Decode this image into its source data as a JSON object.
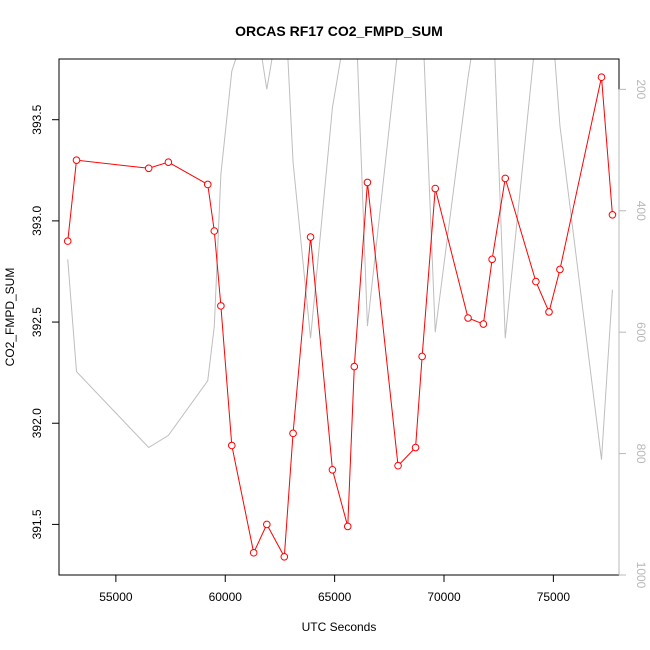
{
  "chart_data": {
    "type": "line",
    "title": "ORCAS RF17 CO2_FMPD_SUM",
    "xlabel": "UTC Seconds",
    "ylabel": "CO2_FMPD_SUM",
    "xlim": [
      52400,
      78000
    ],
    "ylim": [
      391.25,
      393.8
    ],
    "x_ticks": [
      55000,
      60000,
      65000,
      70000,
      75000
    ],
    "x_tick_labels": [
      "55000",
      "60000",
      "65000",
      "70000",
      "75000"
    ],
    "y_ticks": [
      391.5,
      392.0,
      392.5,
      393.0,
      393.5
    ],
    "y_tick_labels": [
      "391.5",
      "392.0",
      "392.5",
      "393.0",
      "393.5"
    ],
    "y2lim": [
      1000,
      150
    ],
    "y2_ticks": [
      200,
      400,
      600,
      800,
      1000
    ],
    "y2_tick_labels": [
      "200",
      "400",
      "600",
      "800",
      "1000"
    ],
    "grid": false,
    "series": [
      {
        "color": "#ff0000",
        "axis": "left",
        "markers": "open-circle",
        "x": [
          52800,
          53200,
          56500,
          57400,
          59200,
          59500,
          59800,
          60300,
          61300,
          61900,
          62700,
          63100,
          63900,
          64900,
          65600,
          65900,
          66500,
          67900,
          68700,
          69000,
          69600,
          71100,
          71800,
          72200,
          72800,
          74200,
          74800,
          75300,
          77200,
          77700
        ],
        "values": [
          392.9,
          393.3,
          393.26,
          393.29,
          393.18,
          392.95,
          392.58,
          391.89,
          391.36,
          391.5,
          391.34,
          391.95,
          392.92,
          391.77,
          391.49,
          392.28,
          393.19,
          391.79,
          391.88,
          392.33,
          393.16,
          392.52,
          392.49,
          392.81,
          393.21,
          392.7,
          392.55,
          392.76,
          393.71,
          393.03
        ]
      },
      {
        "color": "#bebebe",
        "axis": "right",
        "markers": "none",
        "x": [
          52800,
          53200,
          56500,
          57400,
          59200,
          59500,
          59800,
          60300,
          61300,
          61900,
          62700,
          63100,
          63900,
          64900,
          65600,
          65900,
          66500,
          67900,
          68700,
          69000,
          69600,
          71100,
          71800,
          72200,
          72800,
          74200,
          74800,
          75300,
          77200,
          77700
        ],
        "values": [
          480,
          665,
          790,
          770,
          680,
          590,
          340,
          170,
          60,
          200,
          30,
          320,
          610,
          230,
          80,
          10,
          590,
          130,
          10,
          70,
          600,
          180,
          20,
          30,
          610,
          110,
          20,
          260,
          810,
          530
        ]
      }
    ]
  }
}
